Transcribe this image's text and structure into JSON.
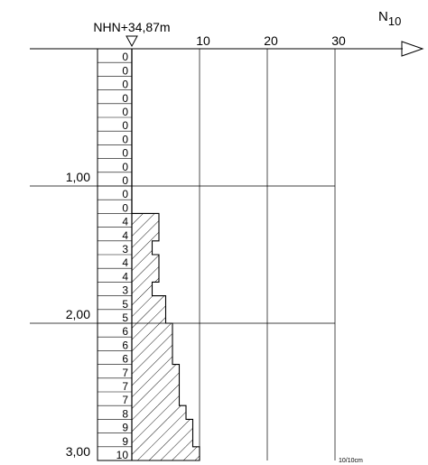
{
  "chart_data": {
    "type": "bar",
    "orientation": "horizontal",
    "reference_label": "NHN+34,87m",
    "axis_title_main": "N",
    "axis_title_sub": "10",
    "unit_label": "10/10cm",
    "x_ticks": [
      10,
      20,
      30
    ],
    "xlim": [
      0,
      30
    ],
    "depth_ticks": [
      {
        "value": 1.0,
        "label": "1,00"
      },
      {
        "value": 2.0,
        "label": "2,00"
      },
      {
        "value": 3.0,
        "label": "3,00"
      }
    ],
    "ylim": [
      0,
      3.0
    ],
    "interval": 0.1,
    "values": [
      0,
      0,
      0,
      0,
      0,
      0,
      0,
      0,
      0,
      0,
      0,
      0,
      4,
      4,
      3,
      4,
      4,
      3,
      5,
      5,
      6,
      6,
      6,
      7,
      7,
      7,
      8,
      9,
      9,
      10
    ],
    "grid": true
  }
}
